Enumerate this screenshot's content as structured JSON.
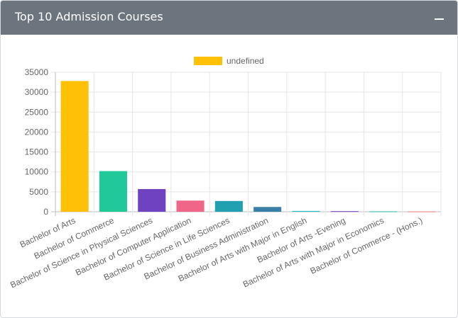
{
  "card": {
    "title": "Top 10 Admission Courses",
    "collapse_icon": "minus-icon"
  },
  "colors": {
    "header_bg": "#6c757d",
    "grid": "#e6e6e6",
    "text": "#666666"
  },
  "chart_data": {
    "type": "bar",
    "legend": {
      "label": "undefined",
      "color": "#ffc107",
      "position": "top"
    },
    "categories": [
      "Bachelor of Arts",
      "Bachelor of Commerce",
      "Bachelor of Science in Physical Sciences",
      "Bachelor of Computer Application",
      "Bachelor of Science in Life Sciences",
      "Bachelor of Business Administration",
      "Bachelor of Arts with Major in English",
      "Bachelor of Arts -Evening",
      "Bachelor of Arts with Major in Economics",
      "Bachelor of Commerce - (Hons.)"
    ],
    "values": [
      32800,
      10200,
      5700,
      2800,
      2700,
      1200,
      200,
      150,
      100,
      80
    ],
    "colors": [
      "#ffc107",
      "#20c997",
      "#6f42c1",
      "#f06688",
      "#20a0b0",
      "#3a7fa8",
      "#20c0c8",
      "#7b40c8",
      "#28b8b0",
      "#f07878"
    ],
    "y_ticks": [
      "0",
      "5000",
      "10000",
      "15000",
      "20000",
      "25000",
      "30000",
      "35000"
    ],
    "ylim": [
      0,
      35000
    ],
    "grid": true
  }
}
